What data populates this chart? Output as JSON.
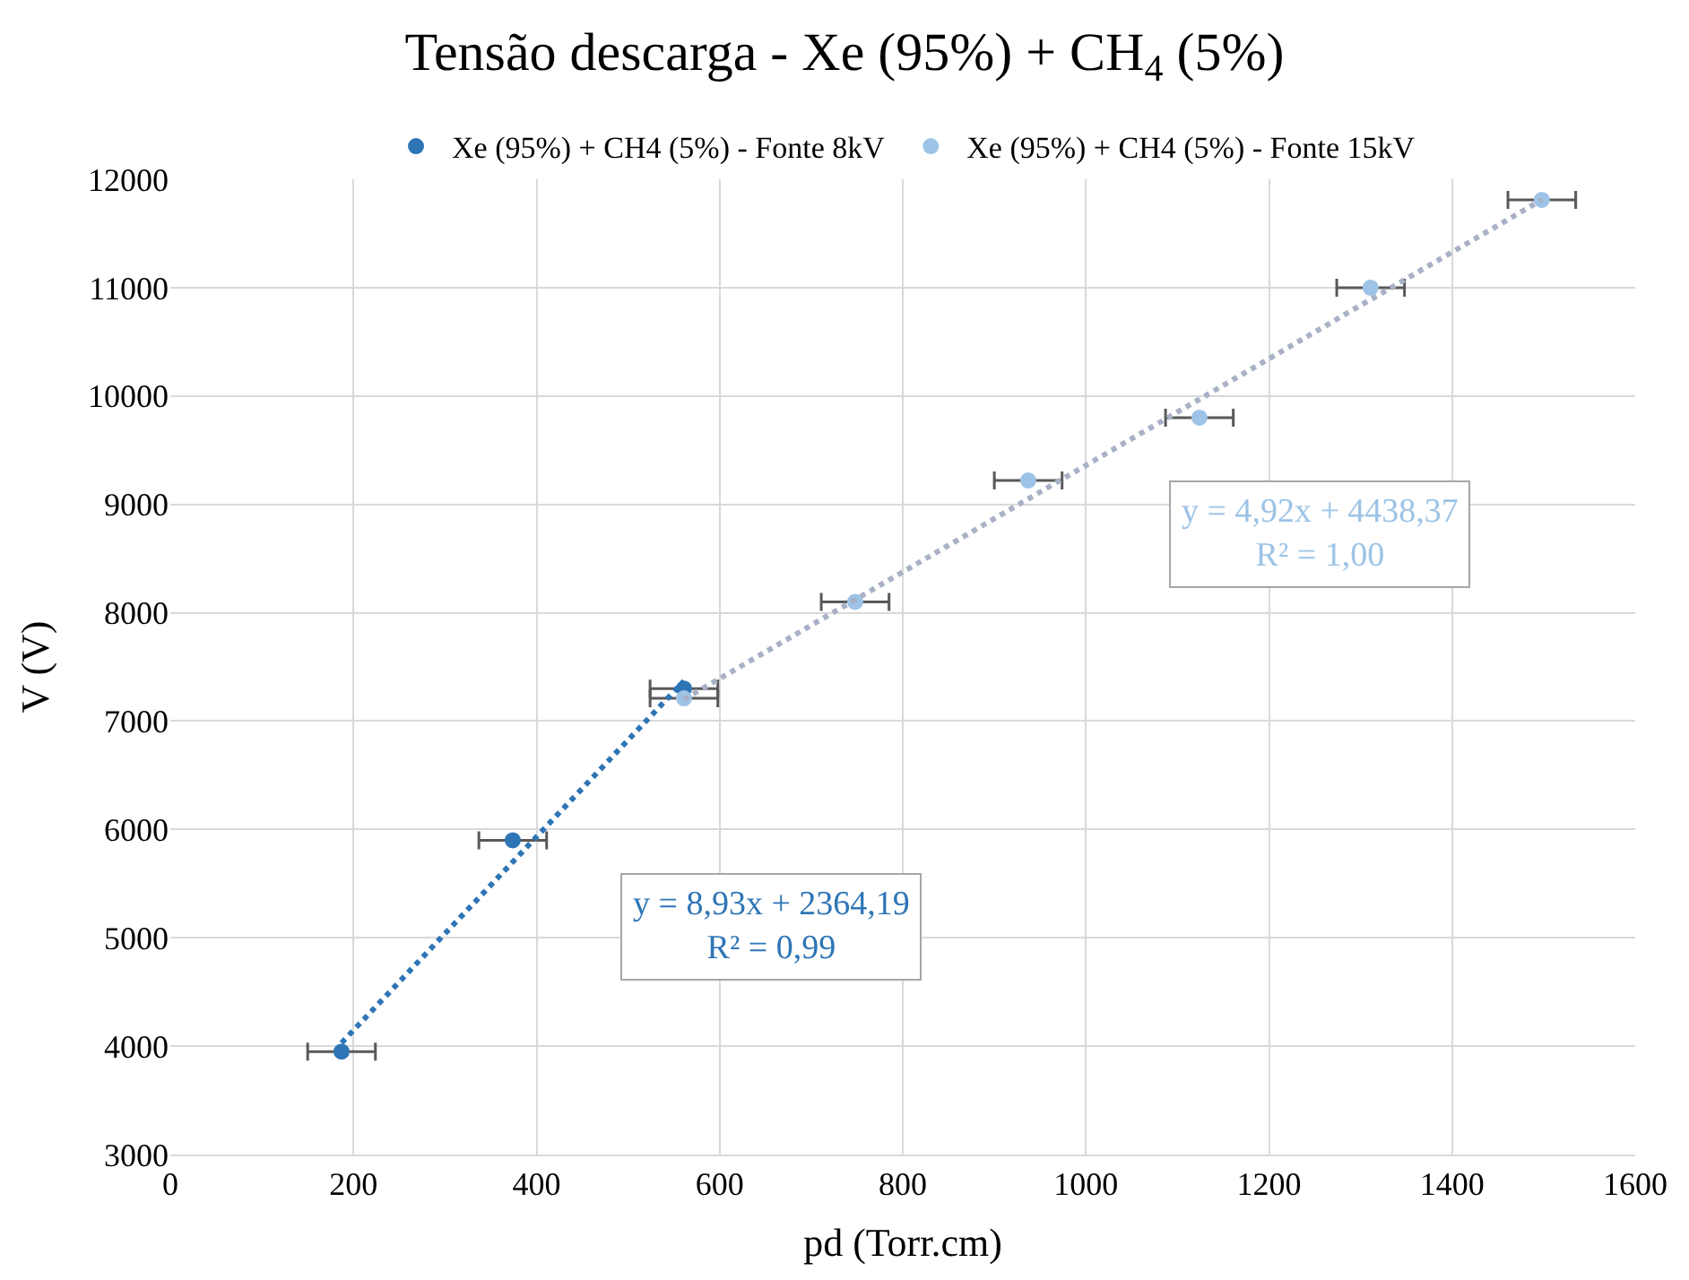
{
  "chart_data": {
    "type": "scatter",
    "title": "Tensão descarga - Xe (95%) + CH$_{4}$ (5%)",
    "xlabel": "pd (Torr.cm)",
    "ylabel": "V (V)",
    "xlim": [
      0,
      1600
    ],
    "xticks": [
      0,
      200,
      400,
      600,
      800,
      1000,
      1200,
      1400,
      1600
    ],
    "ylim": [
      3000,
      12000
    ],
    "yticks": [
      3000,
      4000,
      5000,
      6000,
      7000,
      8000,
      9000,
      10000,
      11000,
      12000
    ],
    "grid": true,
    "legend": "top",
    "marker": "circle",
    "series": [
      {
        "name": "Xe (95%) + CH4 (5%) - Fonte 8kV",
        "color": "#2e75b6",
        "x": [
          187,
          374,
          561
        ],
        "values": [
          3950,
          5900,
          7300
        ],
        "xerrors": [
          37,
          37,
          37
        ]
      },
      {
        "name": "Xe (95%) + CH4 (5%) - Fonte 15kV",
        "color": "#9dc3e6",
        "x": [
          561,
          748,
          937,
          1124,
          1311,
          1498
        ],
        "values": [
          7210,
          8100,
          9220,
          9800,
          11000,
          11810
        ],
        "xerrors": [
          37,
          37,
          37,
          37,
          37,
          37
        ]
      },
      {
        "type": "line",
        "marker": "none",
        "line_style": "dotted",
        "color": "#2e75b6",
        "x": [
          187,
          561
        ],
        "values": [
          4030,
          7370
        ]
      },
      {
        "type": "line",
        "marker": "none",
        "line_style": "dotted",
        "color": "#a9b1c6",
        "x": [
          561,
          1498
        ],
        "values": [
          7200,
          11810
        ]
      }
    ],
    "annotations": [
      "y = 8,93x + 2364,19\nR² = 0,99",
      "y = 4,92x + 4438,37\nR² = 1,00"
    ]
  }
}
